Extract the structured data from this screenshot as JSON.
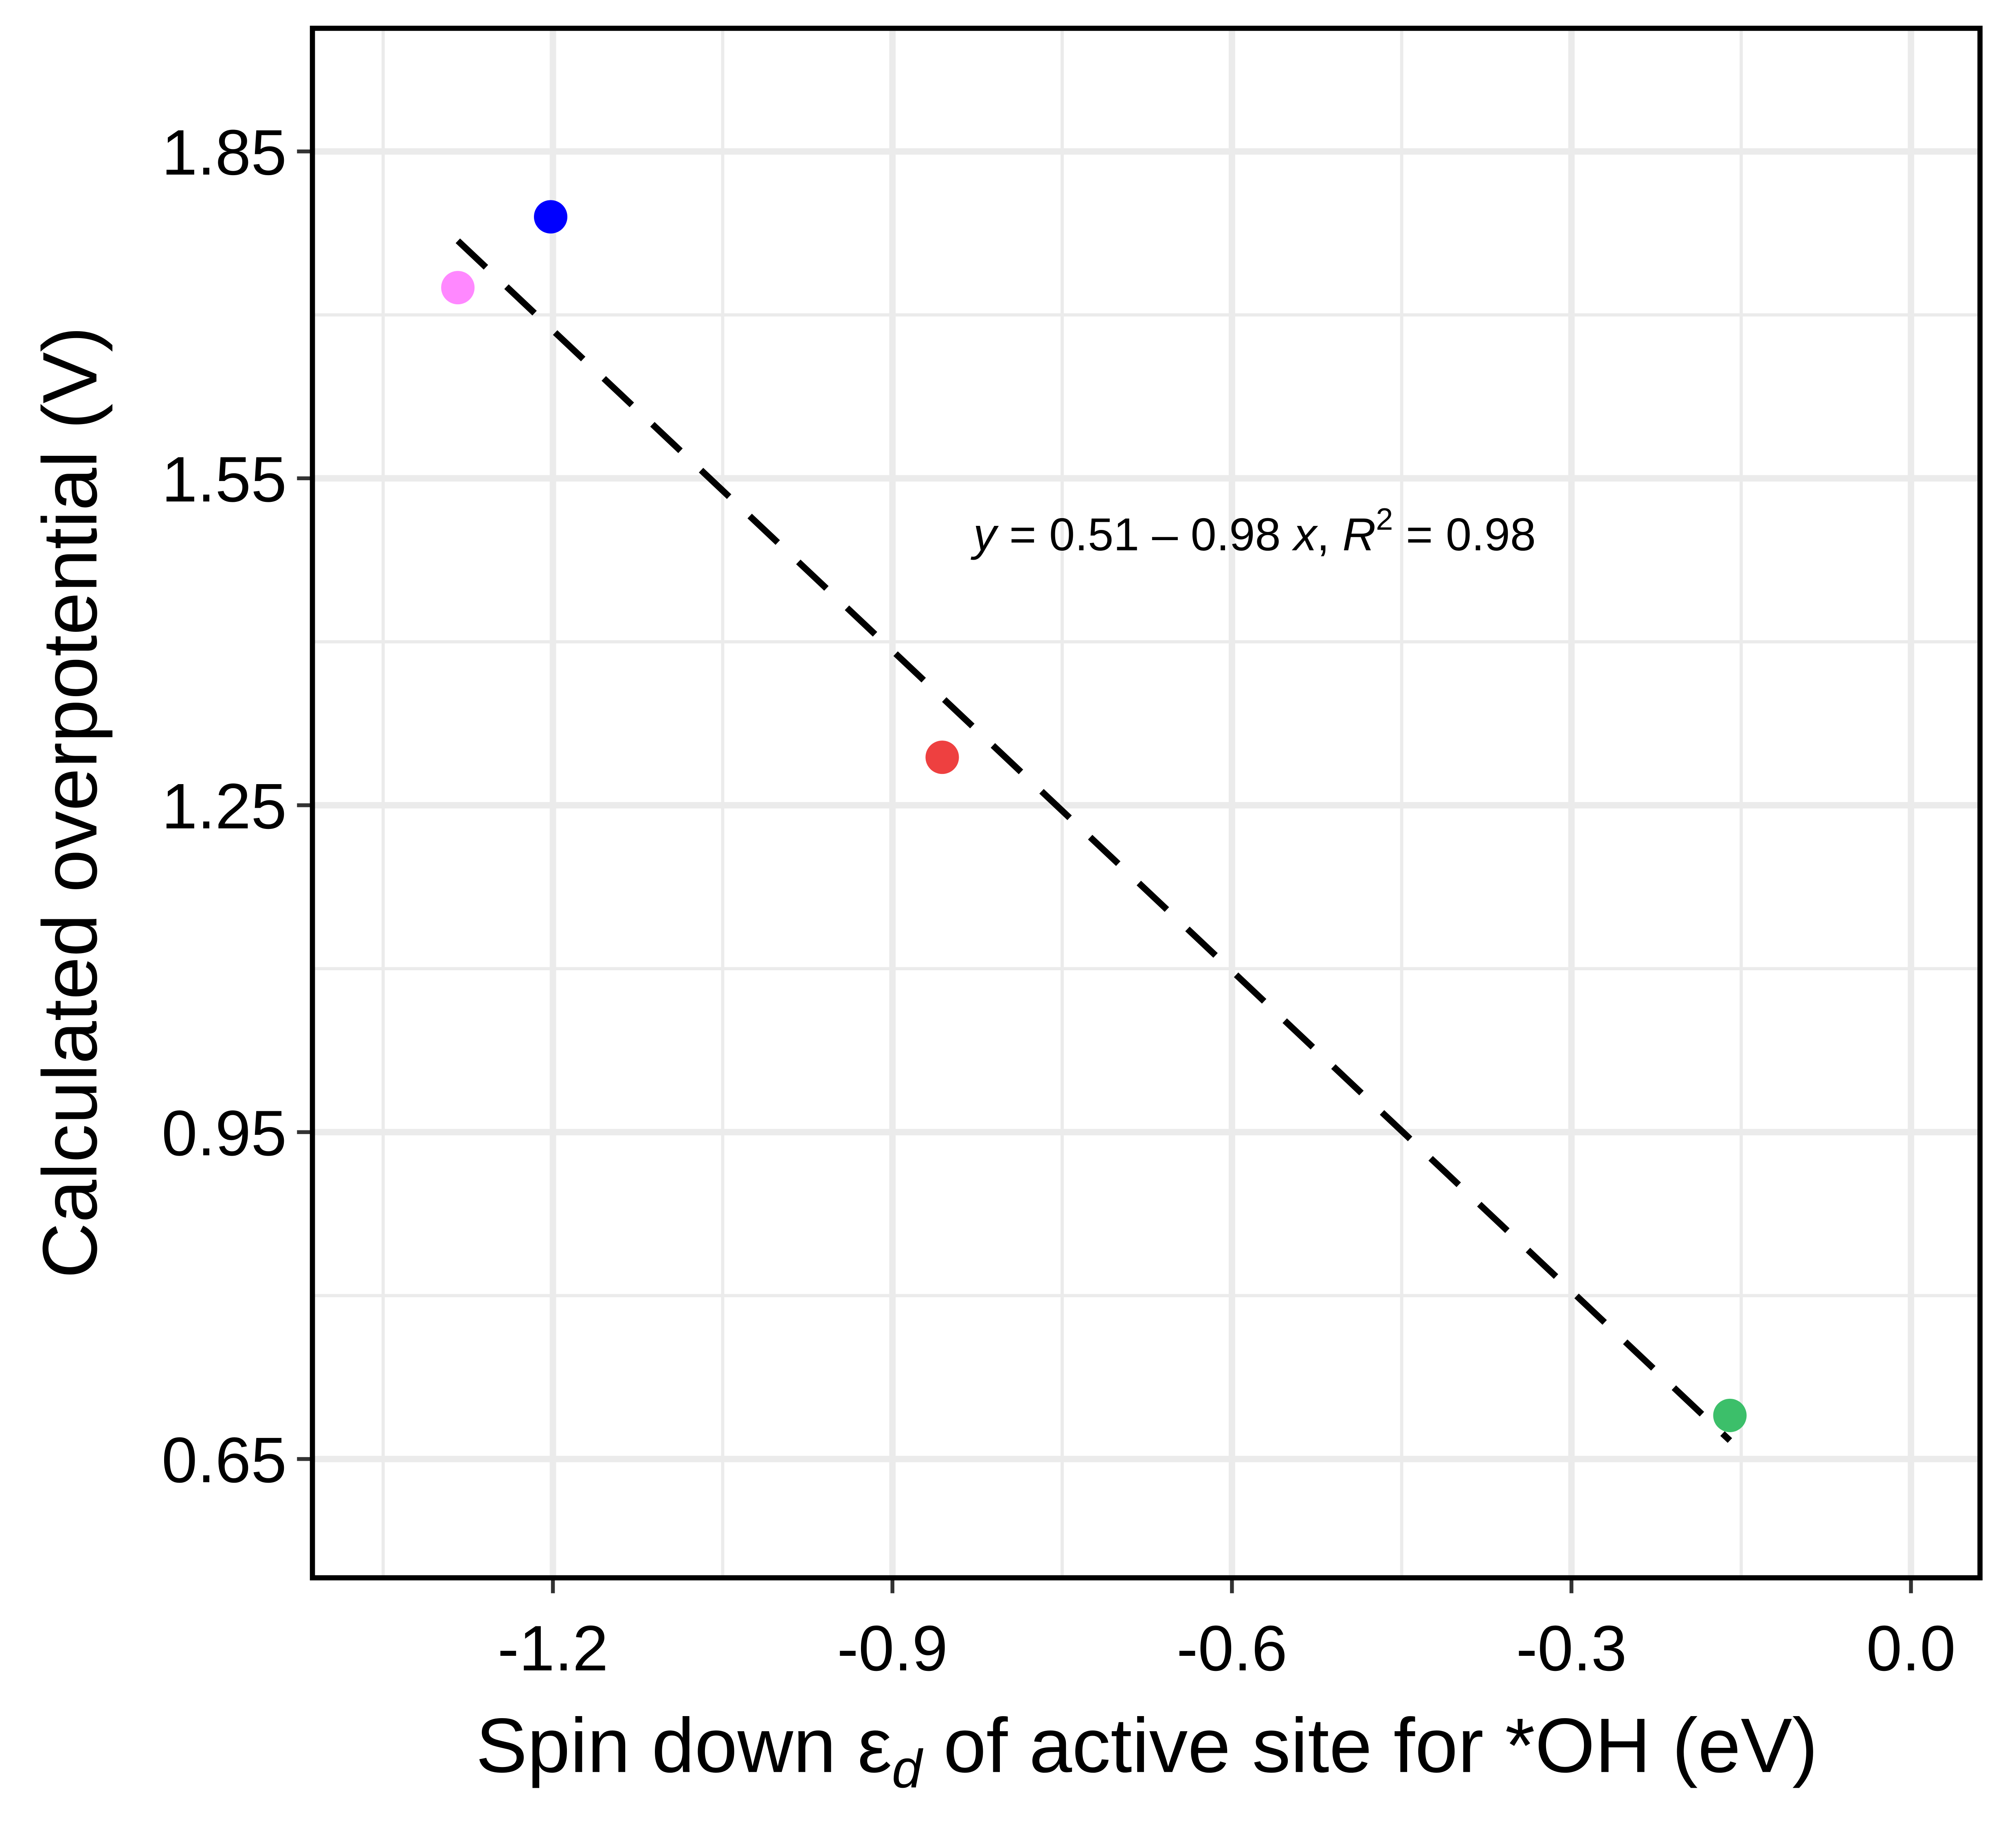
{
  "chart_data": {
    "type": "scatter",
    "ylabel": "Calculated overpotential (V)",
    "xlabel": [
      "Spin down ε",
      "d",
      " of active site for *OH (eV)"
    ],
    "annotation": [
      "y",
      " = 0.51 – 0.98 ",
      "x",
      ", ",
      "R",
      "2",
      " = 0.98"
    ],
    "x": [
      -1.284,
      -1.202,
      -0.856,
      -0.16
    ],
    "values": [
      1.725,
      1.79,
      1.294,
      0.69
    ],
    "colors": [
      "#ff88ff",
      "#0000ff",
      "#ee4040",
      "#3cbf6a"
    ],
    "fit_line": {
      "x": [
        -1.284,
        -0.16
      ],
      "values": [
        1.768,
        0.667
      ],
      "color": "#000000"
    },
    "xlim": [
      -1.4125,
      0.061
    ],
    "ylim": [
      0.541,
      1.963
    ],
    "xticks": [
      -1.2,
      -0.9,
      -0.6,
      -0.3,
      {
        "value": 0,
        "label": "0.0"
      }
    ],
    "yticks": [
      1.85,
      1.55,
      1.25,
      0.95,
      0.65
    ],
    "xminor": [
      -1.35,
      -1.05,
      -0.75,
      -0.45,
      -0.15
    ],
    "yminor": [
      1.7,
      1.4,
      1.1,
      0.8
    ],
    "grid": true
  }
}
